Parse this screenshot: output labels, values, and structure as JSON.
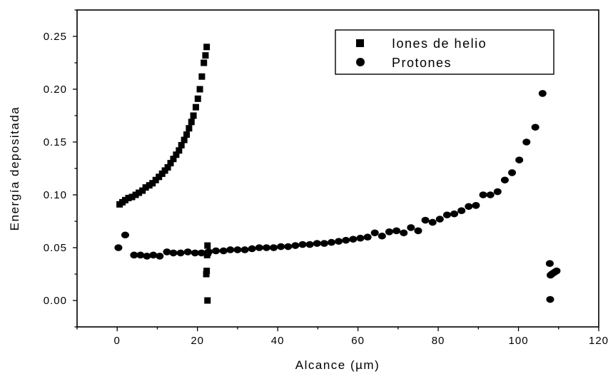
{
  "chart_data": {
    "type": "scatter",
    "xlabel": "Alcance (µm)",
    "ylabel": "Energía depositada",
    "xlim": [
      -10,
      120
    ],
    "ylim": [
      -0.025,
      0.275
    ],
    "xticks": [
      0,
      20,
      40,
      60,
      80,
      100,
      120
    ],
    "yticks": [
      0.0,
      0.05,
      0.1,
      0.15,
      0.2,
      0.25
    ],
    "xtick_labels": [
      "0",
      "20",
      "40",
      "60",
      "80",
      "100",
      "120"
    ],
    "ytick_labels": [
      "0.00",
      "0.05",
      "0.10",
      "0.15",
      "0.20",
      "0.25"
    ],
    "grid": false,
    "legend_position": "top-right",
    "series": [
      {
        "name": "Iones de helio",
        "marker": "square",
        "color": "#000000",
        "x": [
          0.6,
          1.3,
          2.0,
          2.8,
          3.7,
          4.6,
          5.4,
          6.3,
          7.1,
          8.0,
          8.8,
          9.6,
          10.4,
          11.2,
          11.9,
          12.6,
          13.3,
          14.0,
          14.7,
          15.4,
          16.0,
          16.7,
          17.3,
          17.9,
          18.5,
          19.0,
          19.6,
          20.1,
          20.6,
          21.1,
          21.6,
          22.0,
          22.3,
          22.5,
          22.6,
          22.4,
          22.3,
          22.2,
          22.5
        ],
        "y": [
          0.091,
          0.093,
          0.095,
          0.097,
          0.098,
          0.1,
          0.102,
          0.104,
          0.107,
          0.109,
          0.111,
          0.114,
          0.117,
          0.12,
          0.123,
          0.126,
          0.13,
          0.134,
          0.138,
          0.142,
          0.147,
          0.152,
          0.157,
          0.163,
          0.169,
          0.175,
          0.183,
          0.191,
          0.2,
          0.212,
          0.225,
          0.232,
          0.24,
          0.052,
          0.045,
          0.043,
          0.028,
          0.025,
          0.0
        ]
      },
      {
        "name": "Protones",
        "marker": "circle",
        "color": "#000000",
        "x": [
          0.3,
          2.0,
          4.2,
          5.8,
          7.4,
          9.0,
          10.6,
          12.4,
          14.0,
          15.8,
          17.6,
          19.4,
          21.0,
          22.8,
          24.6,
          26.5,
          28.2,
          30.0,
          31.8,
          33.6,
          35.4,
          37.2,
          39.0,
          40.8,
          42.6,
          44.4,
          46.2,
          48.0,
          49.8,
          51.6,
          53.4,
          55.2,
          57.0,
          58.8,
          60.6,
          62.4,
          64.2,
          66.0,
          67.8,
          69.6,
          71.4,
          73.2,
          75.0,
          76.8,
          78.6,
          80.4,
          82.2,
          84.0,
          85.8,
          87.6,
          89.4,
          91.2,
          93.0,
          94.8,
          96.6,
          98.4,
          100.2,
          102.0,
          104.2,
          106.0,
          107.8,
          108.0,
          108.3,
          108.7,
          109.1,
          109.5,
          107.9
        ],
        "y": [
          0.05,
          0.062,
          0.043,
          0.043,
          0.042,
          0.043,
          0.042,
          0.046,
          0.045,
          0.045,
          0.046,
          0.045,
          0.045,
          0.046,
          0.047,
          0.047,
          0.048,
          0.048,
          0.048,
          0.049,
          0.05,
          0.05,
          0.05,
          0.051,
          0.051,
          0.052,
          0.053,
          0.053,
          0.054,
          0.054,
          0.055,
          0.056,
          0.057,
          0.058,
          0.059,
          0.06,
          0.064,
          0.061,
          0.065,
          0.066,
          0.064,
          0.069,
          0.066,
          0.076,
          0.074,
          0.077,
          0.081,
          0.082,
          0.085,
          0.089,
          0.09,
          0.1,
          0.1,
          0.103,
          0.114,
          0.121,
          0.133,
          0.15,
          0.164,
          0.196,
          0.035,
          0.024,
          0.025,
          0.026,
          0.027,
          0.028,
          0.001
        ]
      }
    ]
  }
}
